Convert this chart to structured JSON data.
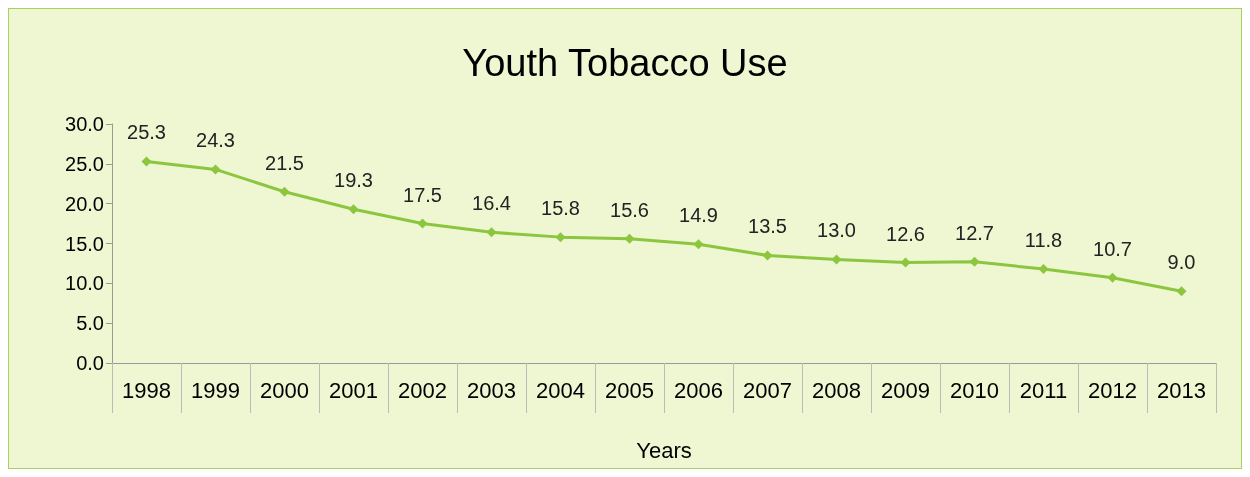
{
  "chart_data": {
    "type": "line",
    "title": "Youth Tobacco Use",
    "xlabel": "Years",
    "categories": [
      "1998",
      "1999",
      "2000",
      "2001",
      "2002",
      "2003",
      "2004",
      "2005",
      "2006",
      "2007",
      "2008",
      "2009",
      "2010",
      "2011",
      "2012",
      "2013"
    ],
    "series": [
      {
        "color": "#8cc63f",
        "values": [
          25.3,
          24.3,
          21.5,
          19.3,
          17.5,
          16.4,
          15.8,
          15.6,
          14.9,
          13.5,
          13.0,
          12.6,
          12.7,
          11.8,
          10.7,
          9.0
        ],
        "value_labels": [
          "25.3",
          "24.3",
          "21.5",
          "19.3",
          "17.5",
          "16.4",
          "15.8",
          "15.6",
          "14.9",
          "13.5",
          "13.0",
          "12.6",
          "12.7",
          "11.8",
          "10.7",
          "9.0"
        ]
      }
    ],
    "ylim": [
      0,
      30
    ],
    "yticks": [
      {
        "value": 0,
        "label": "0.0"
      },
      {
        "value": 5,
        "label": "5.0"
      },
      {
        "value": 10,
        "label": "10.0"
      },
      {
        "value": 15,
        "label": "15.0"
      },
      {
        "value": 20,
        "label": "20.0"
      },
      {
        "value": 25,
        "label": "25.0"
      },
      {
        "value": 30,
        "label": "30.0"
      }
    ],
    "grid": false,
    "marker": "diamond",
    "line_style": "solid"
  }
}
